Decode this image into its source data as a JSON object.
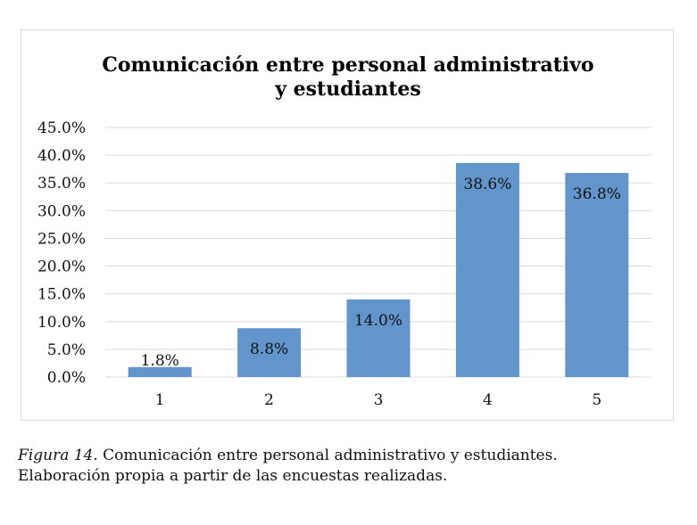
{
  "chart_data": {
    "type": "bar",
    "title_lines": [
      "Comunicación entre personal administrativo",
      "y estudiantes"
    ],
    "categories": [
      "1",
      "2",
      "3",
      "4",
      "5"
    ],
    "values": [
      1.8,
      8.8,
      14.0,
      38.6,
      36.8
    ],
    "data_labels": [
      "1.8%",
      "8.8%",
      "14.0%",
      "38.6%",
      "36.8%"
    ],
    "y_ticks": [
      "0.0%",
      "5.0%",
      "10.0%",
      "15.0%",
      "20.0%",
      "25.0%",
      "30.0%",
      "35.0%",
      "40.0%",
      "45.0%"
    ],
    "ylim": [
      0,
      45
    ],
    "grid": true,
    "bar_color": "#6195cb",
    "grid_color": "#d9d9d9"
  },
  "caption": {
    "figure_label": "Figura 14.",
    "line1": " Comunicación entre personal administrativo y estudiantes.",
    "line2": "Elaboración propia a partir de las encuestas realizadas."
  }
}
